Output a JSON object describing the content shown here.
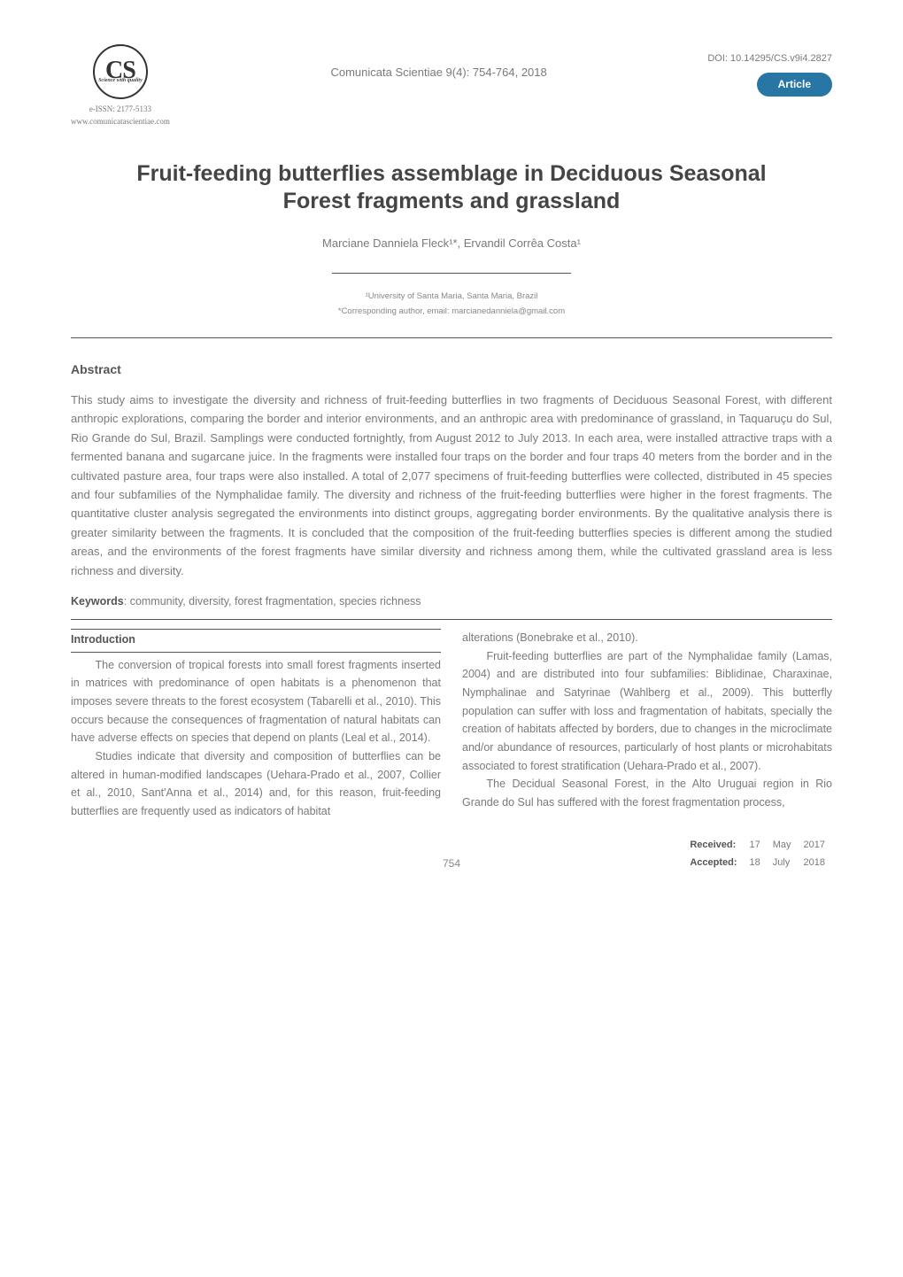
{
  "header": {
    "logo_text": "CS",
    "logo_subtext": "Science with quality",
    "eissn": "e-ISSN: 2177-5133",
    "site": "www.comunicatascientiae.com",
    "journal_ref": "Comunicata Scientiae 9(4): 754-764, 2018",
    "doi": "DOI: 10.14295/CS.v9i4.2827",
    "article_pill": "Article"
  },
  "title": "Fruit-feeding butterflies assemblage in Deciduous Seasonal Forest fragments and grassland",
  "authors_html": "Marciane Danniela Fleck¹*, Ervandil Corrêa Costa¹",
  "affiliations": [
    "¹University of Santa Maria, Santa Maria, Brazil",
    "*Corresponding author, email: marcianedanniela@gmail.com"
  ],
  "abstract": {
    "heading": "Abstract",
    "body": "This study aims to investigate the diversity and richness of fruit-feeding butterflies in two fragments of Deciduous Seasonal Forest, with different anthropic explorations, comparing the border and interior environments, and an anthropic area with predominance of grassland, in Taquaruçu do Sul, Rio Grande do Sul, Brazil. Samplings were conducted fortnightly, from August 2012 to July 2013. In each area, were installed attractive traps with a fermented banana and sugarcane juice. In the fragments were installed four traps on the border and four traps 40 meters from the border and in the cultivated pasture area, four traps were also installed. A total of 2,077 specimens of fruit-feeding butterflies were collected, distributed in 45 species and four subfamilies of the Nymphalidae family. The diversity and richness of the fruit-feeding butterflies were higher in the forest fragments. The quantitative cluster analysis segregated the environments into distinct groups, aggregating border environments. By the qualitative analysis there is greater similarity between the fragments. It is concluded that the composition of the fruit-feeding butterflies species is different among the studied areas, and the environments of the forest fragments have similar diversity and richness among them, while the cultivated grassland area is less richness and diversity."
  },
  "keywords": {
    "label": "Keywords",
    "list": ": community, diversity, forest fragmentation, species richness"
  },
  "intro_heading": "Introduction",
  "left_col": [
    "The conversion of tropical forests into small forest fragments inserted in matrices with predominance of open habitats is a phenomenon that imposes severe threats to the forest ecosystem (Tabarelli et al., 2010). This occurs because the consequences of fragmentation of natural habitats can have adverse effects on species that depend on plants (Leal et al., 2014).",
    "Studies indicate that diversity and composition of butterflies can be altered in human-modified landscapes (Uehara-Prado et al., 2007, Collier et al., 2010, Sant'Anna et al., 2014) and, for this reason, fruit-feeding butterflies are frequently used as indicators of habitat"
  ],
  "right_col": [
    "alterations (Bonebrake et al., 2010).",
    "Fruit-feeding butterflies are part of the Nymphalidae family (Lamas, 2004) and are distributed into four subfamilies: Biblidinae, Charaxinae, Nymphalinae and Satyrinae (Wahlberg et al., 2009). This butterfly population can suffer with loss and fragmentation of habitats, specially the creation of habitats affected by borders, due to changes in the microclimate and/or abundance of resources, particularly of host plants or microhabitats associated to forest stratification (Uehara-Prado et al., 2007).",
    "The Decidual Seasonal Forest, in the Alto Uruguai region in Rio Grande do Sul has suffered with the forest fragmentation process,"
  ],
  "footer": {
    "page": "754",
    "dates": {
      "received_label": "Received:",
      "received_day": "17",
      "received_month": "May",
      "received_year": "2017",
      "accepted_label": "Accepted:",
      "accepted_day": "18",
      "accepted_month": "July",
      "accepted_year": "2018"
    }
  },
  "colors": {
    "pill_bg": "#2876a3",
    "body_text": "#7a7a7a",
    "heading_text": "#555",
    "rule": "#555"
  }
}
